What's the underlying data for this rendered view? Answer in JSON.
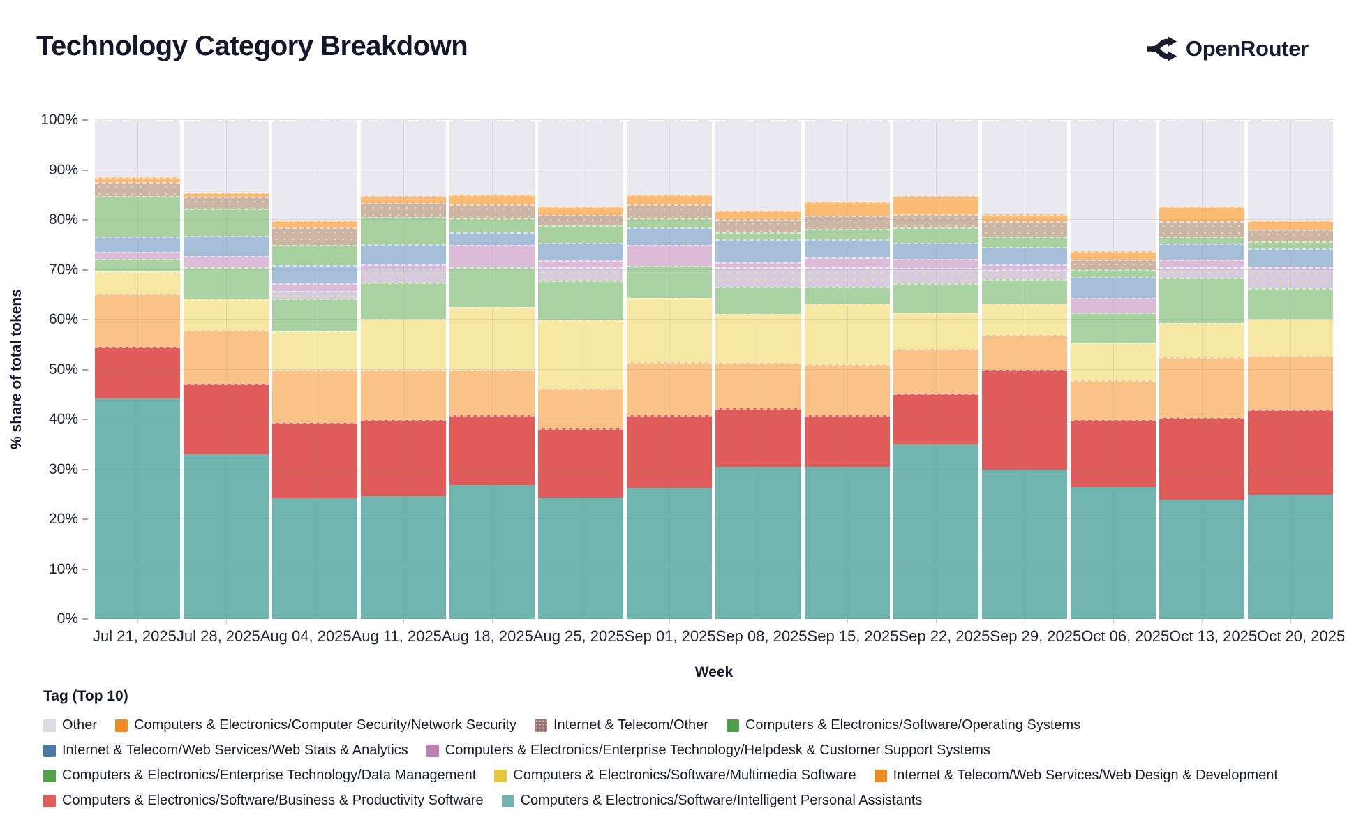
{
  "header": {
    "title": "Technology Category Breakdown",
    "brand": "OpenRouter"
  },
  "chart_data": {
    "type": "bar",
    "stacked": true,
    "normalized": "percent",
    "title": "Technology Category Breakdown",
    "x_axis_title": "Week",
    "y_axis_title": "% share of total tokens",
    "ylim": [
      0,
      100
    ],
    "grid": true,
    "y_ticks": [
      "0%",
      "10%",
      "20%",
      "30%",
      "40%",
      "50%",
      "60%",
      "70%",
      "80%",
      "90%",
      "100%"
    ],
    "categories": [
      "Jul 21, 2025",
      "Jul 28, 2025",
      "Aug 04, 2025",
      "Aug 11, 2025",
      "Aug 18, 2025",
      "Aug 25, 2025",
      "Sep 01, 2025",
      "Sep 08, 2025",
      "Sep 15, 2025",
      "Sep 22, 2025",
      "Sep 29, 2025",
      "Oct 06, 2025",
      "Oct 13, 2025",
      "Oct 20, 2025"
    ],
    "series_note": "listed bottom of stack to top; values are % share per week",
    "series": [
      {
        "tag": "personal-assistants",
        "name": "Computers & Electronics/Software/Intelligent Personal Assistants",
        "bar_color": "#6fb4af",
        "swatch_color": "#74b3ae",
        "pattern": null,
        "in_legend": true,
        "values": [
          44.2,
          33.0,
          24.2,
          24.6,
          26.8,
          24.4,
          26.3,
          30.5,
          30.5,
          35.0,
          30.0,
          26.4,
          23.9,
          24.9
        ]
      },
      {
        "tag": "business-productivity",
        "name": "Computers & Electronics/Software/Business & Productivity Software",
        "bar_color": "#e05c5a",
        "swatch_color": "#e05e58",
        "pattern": null,
        "in_legend": true,
        "values": [
          10.4,
          14.1,
          15.1,
          15.3,
          14.0,
          13.8,
          14.5,
          11.8,
          10.3,
          10.2,
          19.9,
          13.5,
          16.4,
          17.1
        ]
      },
      {
        "tag": "web-design-development",
        "name": "Internet & Telecom/Web Services/Web Design & Development",
        "bar_color": "#f9c287",
        "swatch_color": "#ef8b20",
        "pattern": null,
        "in_legend": true,
        "values": [
          10.6,
          10.8,
          10.6,
          10.0,
          9.1,
          8.0,
          10.7,
          9.1,
          10.3,
          8.9,
          7.0,
          7.9,
          12.1,
          10.7
        ]
      },
      {
        "tag": "multimedia-software",
        "name": "Computers & Electronics/Software/Multimedia Software",
        "bar_color": "#f6e7a3",
        "swatch_color": "#e9c63d",
        "pattern": null,
        "in_legend": true,
        "values": [
          4.5,
          6.3,
          7.7,
          10.3,
          12.6,
          13.8,
          12.9,
          9.7,
          12.1,
          7.3,
          6.3,
          7.5,
          6.9,
          7.5
        ]
      },
      {
        "tag": "data-management",
        "name": "Computers & Electronics/Enterprise Technology/Data Management",
        "bar_color": "#aad2a2",
        "swatch_color": "#55a04c",
        "pattern": null,
        "in_legend": true,
        "values": [
          2.5,
          6.3,
          6.6,
          7.2,
          8.0,
          7.9,
          6.4,
          5.5,
          3.4,
          5.9,
          4.9,
          6.1,
          9.1,
          6.1
        ]
      },
      {
        "tag": "unlabeled-dotted",
        "name": "(unlabeled dotted segment)",
        "bar_color": "#d7cbdf",
        "swatch_color": "#d7cbdf",
        "pattern": "dots-yellow",
        "in_legend": false,
        "values": [
          0,
          0,
          1.6,
          2.8,
          0,
          2.6,
          0,
          3.9,
          3.9,
          3.1,
          2.0,
          0,
          2.1,
          4.0
        ]
      },
      {
        "tag": "helpdesk-support",
        "name": "Computers & Electronics/Enterprise Technology/Helpdesk & Customer Support Systems",
        "bar_color": "#dcbbd9",
        "swatch_color": "#bc80b2",
        "pattern": null,
        "in_legend": true,
        "values": [
          1.4,
          2.3,
          1.5,
          0.9,
          4.5,
          1.4,
          4.2,
          1.0,
          1.9,
          1.8,
          1.0,
          3.0,
          1.5,
          0.3
        ]
      },
      {
        "tag": "web-stats-analytics",
        "name": "Internet & Telecom/Web Services/Web Stats & Analytics",
        "bar_color": "#a6bed8",
        "swatch_color": "#4a78a6",
        "pattern": null,
        "in_legend": true,
        "values": [
          3.1,
          4.0,
          3.6,
          4.0,
          2.5,
          3.5,
          3.5,
          4.6,
          3.7,
          3.2,
          3.4,
          4.1,
          3.3,
          3.7
        ]
      },
      {
        "tag": "operating-systems",
        "name": "Computers & Electronics/Software/Operating Systems",
        "bar_color": "#a9d1a0",
        "swatch_color": "#4f9d4a",
        "pattern": null,
        "in_legend": true,
        "values": [
          8.1,
          5.4,
          4.1,
          5.5,
          2.8,
          3.5,
          1.8,
          1.4,
          2.1,
          3.1,
          2.1,
          1.6,
          1.3,
          1.4
        ]
      },
      {
        "tag": "internet-telecom-other",
        "name": "Internet & Telecom/Other",
        "bar_color": "#cdb5a3",
        "swatch_color": "#9c6f64",
        "pattern": "dots-white",
        "in_legend": true,
        "values": [
          2.8,
          2.4,
          3.5,
          2.8,
          2.8,
          2.1,
          2.8,
          2.6,
          2.7,
          2.7,
          3.2,
          1.9,
          3.2,
          2.4
        ]
      },
      {
        "tag": "network-security",
        "name": "Computers & Electronics/Computer Security/Network Security",
        "bar_color": "#fabc74",
        "swatch_color": "#ef8b20",
        "pattern": null,
        "in_legend": true,
        "values": [
          1.0,
          0.9,
          1.4,
          1.4,
          1.9,
          1.7,
          1.9,
          1.8,
          2.7,
          3.6,
          1.4,
          1.7,
          2.9,
          1.8
        ]
      },
      {
        "tag": "other",
        "name": "Other",
        "bar_color": "#e9e9ee",
        "swatch_color": "#dcdce0",
        "pattern": null,
        "in_legend": true,
        "values": [
          11.4,
          14.5,
          20.1,
          15.2,
          15.0,
          17.3,
          15.0,
          18.1,
          16.4,
          15.2,
          18.8,
          26.3,
          17.3,
          20.1
        ]
      }
    ]
  },
  "legend": {
    "title": "Tag (Top 10)"
  }
}
